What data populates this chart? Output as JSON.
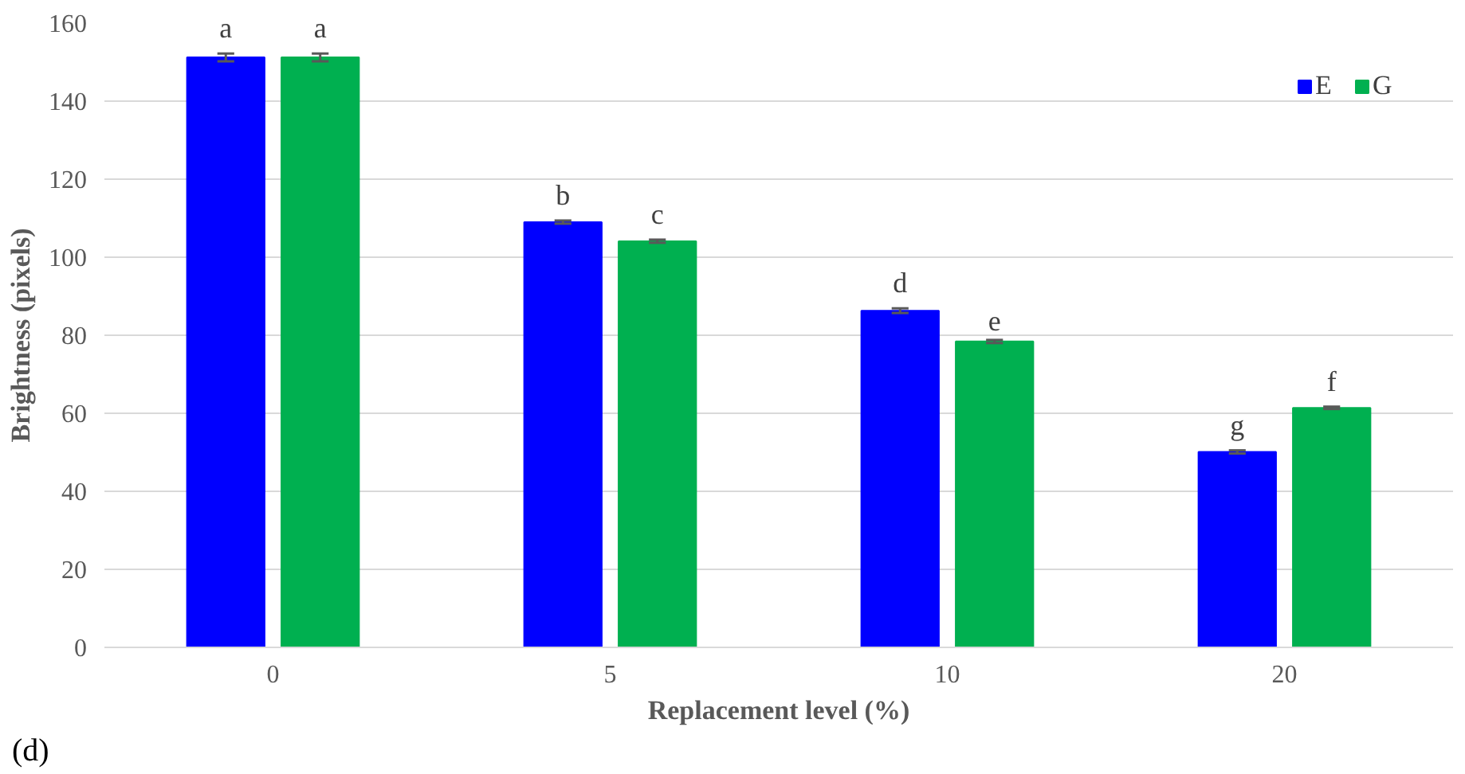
{
  "chart_data": {
    "type": "bar",
    "xlabel": "Replacement level (%)",
    "ylabel": "Brightness (pixels)",
    "categories": [
      "0",
      "5",
      "10",
      "20"
    ],
    "series": [
      {
        "name": "E",
        "color": "#0000ff",
        "values": [
          151.2,
          109,
          86.3,
          50.1
        ],
        "errors": [
          1,
          0.4,
          0.6,
          0.4
        ],
        "value_labels": [
          "a",
          "b",
          "d",
          "g"
        ]
      },
      {
        "name": "G",
        "color": "#00b050",
        "values": [
          151.2,
          104.1,
          78.4,
          61.4
        ],
        "errors": [
          1,
          0.4,
          0.4,
          0.3
        ],
        "value_labels": [
          "a",
          "c",
          "e",
          "f"
        ]
      }
    ],
    "ylim": [
      0,
      160
    ],
    "yticks": [
      0,
      20,
      40,
      60,
      80,
      100,
      120,
      140,
      160
    ],
    "grid": "y",
    "legend": "top right",
    "annotations": [
      "(d)"
    ]
  }
}
